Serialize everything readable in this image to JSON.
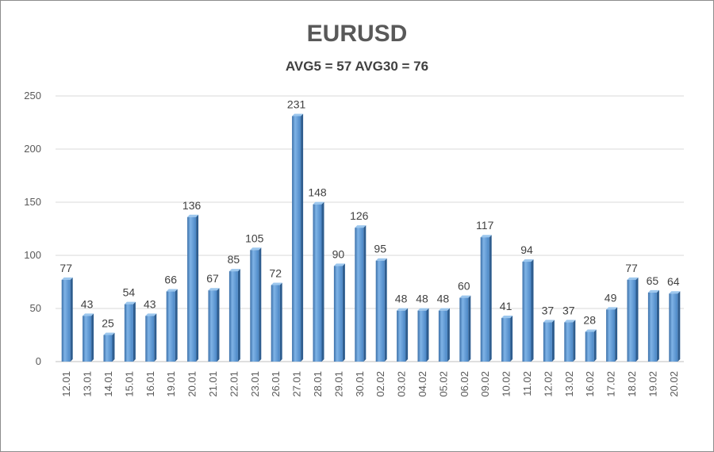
{
  "chart_data": {
    "type": "bar",
    "title": "EURUSD",
    "subtitle": "AVG5 = 57 AVG30 = 76",
    "xlabel": "",
    "ylabel": "",
    "ylim": [
      0,
      250
    ],
    "yticks": [
      0,
      50,
      100,
      150,
      200,
      250
    ],
    "grid": true,
    "legend": "none",
    "bar_color": "#5b9bd5",
    "categories": [
      "12.01",
      "13.01",
      "14.01",
      "15.01",
      "16.01",
      "19.01",
      "20.01",
      "21.01",
      "22.01",
      "23.01",
      "26.01",
      "27.01",
      "28.01",
      "29.01",
      "30.01",
      "02.02",
      "03.02",
      "04.02",
      "05.02",
      "06.02",
      "09.02",
      "10.02",
      "11.02",
      "12.02",
      "13.02",
      "16.02",
      "17.02",
      "18.02",
      "19.02",
      "20.02"
    ],
    "values": [
      77,
      43,
      25,
      54,
      43,
      66,
      136,
      67,
      85,
      105,
      72,
      231,
      148,
      90,
      126,
      95,
      48,
      48,
      48,
      60,
      117,
      41,
      94,
      37,
      37,
      28,
      49,
      77,
      65,
      64
    ]
  }
}
